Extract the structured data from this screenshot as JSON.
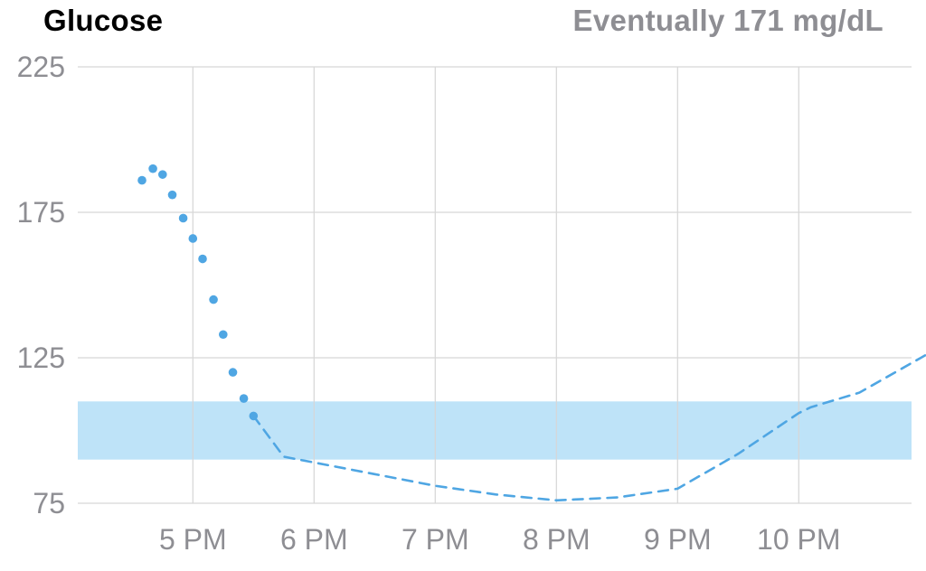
{
  "header": {
    "title": "Glucose",
    "eventual": "Eventually 171 mg/dL"
  },
  "colors": {
    "series": "#4fa6e3",
    "target_band": "#bee3f8",
    "grid": "#d6d6d6",
    "tick_text": "#8e8e93"
  },
  "chart_data": {
    "type": "line",
    "title": "Glucose",
    "subtitle": "Eventually 171 mg/dL",
    "xlabel": "",
    "ylabel": "",
    "y_ticks": [
      75,
      125,
      175,
      225
    ],
    "ylim": [
      75,
      225
    ],
    "x_tick_labels": [
      "5 PM",
      "6 PM",
      "7 PM",
      "8 PM",
      "9 PM",
      "10 PM"
    ],
    "x_ticks_hours": [
      17,
      18,
      19,
      20,
      21,
      22
    ],
    "xlim_hours": [
      16.05,
      23.05
    ],
    "grid": true,
    "target_range": [
      90,
      110
    ],
    "series": [
      {
        "style": "dots",
        "x_hours": [
          16.58,
          16.67,
          16.75,
          16.83,
          16.92,
          17.0,
          17.08,
          17.17,
          17.25,
          17.33,
          17.42,
          17.5
        ],
        "values": [
          186,
          190,
          188,
          181,
          173,
          166,
          159,
          145,
          133,
          120,
          111,
          105
        ]
      },
      {
        "style": "dashed",
        "x_hours": [
          17.5,
          17.75,
          18.0,
          18.5,
          19.0,
          19.5,
          20.0,
          20.5,
          21.0,
          21.5,
          22.0,
          22.1,
          22.5,
          23.05
        ],
        "values": [
          105,
          91,
          89,
          85,
          81,
          78,
          76,
          77,
          80,
          92,
          106,
          108,
          113,
          126
        ]
      }
    ]
  }
}
